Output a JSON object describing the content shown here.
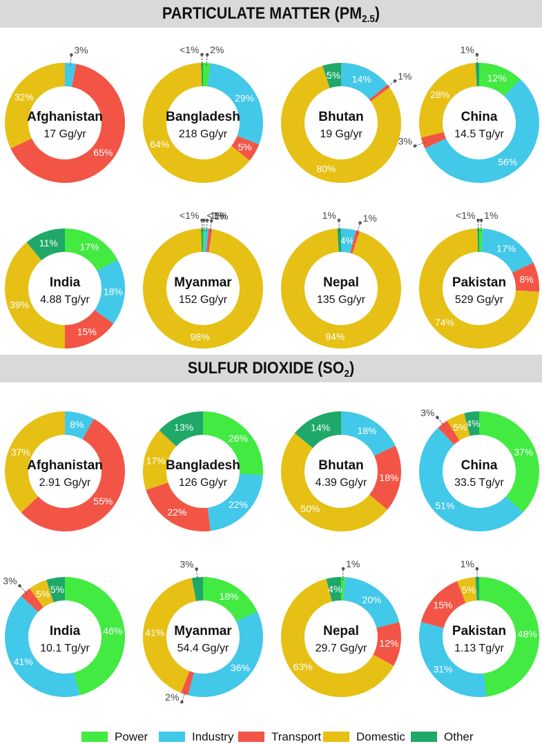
{
  "sections": [
    {
      "title_main": "PARTICULATE MATTER (PM",
      "title_sub": "2.5",
      "title_end": ")"
    },
    {
      "title_main": "SULFUR DIOXIDE (SO",
      "title_sub": "2",
      "title_end": ")"
    }
  ],
  "legend": [
    {
      "label": "Power",
      "color": "#42ea42"
    },
    {
      "label": "Industry",
      "color": "#42c8e8"
    },
    {
      "label": "Transport",
      "color": "#f25546"
    },
    {
      "label": "Domestic",
      "color": "#e6c014"
    },
    {
      "label": "Other",
      "color": "#1fa868"
    }
  ],
  "chart_data": [
    {
      "type": "pie",
      "section": "PARTICULATE MATTER (PM2.5)",
      "country": "Afghanistan",
      "total": "17 Gg/yr",
      "categories": [
        "Power",
        "Industry",
        "Transport",
        "Domestic",
        "Other"
      ],
      "values": [
        0,
        3,
        65,
        32,
        0
      ],
      "labels": [
        "",
        "3%",
        "65%",
        "32%",
        ""
      ]
    },
    {
      "type": "pie",
      "section": "PARTICULATE MATTER (PM2.5)",
      "country": "Bangladesh",
      "total": "218 Gg/yr",
      "categories": [
        "Power",
        "Industry",
        "Transport",
        "Domestic",
        "Other"
      ],
      "values": [
        2,
        29,
        5,
        64,
        0.5
      ],
      "labels": [
        "2%",
        "29%",
        "5%",
        "64%",
        "<1%"
      ]
    },
    {
      "type": "pie",
      "section": "PARTICULATE MATTER (PM2.5)",
      "country": "Bhutan",
      "total": "19 Gg/yr",
      "categories": [
        "Power",
        "Industry",
        "Transport",
        "Domestic",
        "Other"
      ],
      "values": [
        0,
        14,
        1,
        80,
        5
      ],
      "labels": [
        "",
        "14%",
        "1%",
        "80%",
        "5%"
      ]
    },
    {
      "type": "pie",
      "section": "PARTICULATE MATTER (PM2.5)",
      "country": "China",
      "total": "14.5 Tg/yr",
      "categories": [
        "Power",
        "Industry",
        "Transport",
        "Domestic",
        "Other"
      ],
      "values": [
        12,
        56,
        3,
        28,
        1
      ],
      "labels": [
        "12%",
        "56%",
        "3%",
        "28%",
        "1%"
      ]
    },
    {
      "type": "pie",
      "section": "PARTICULATE MATTER (PM2.5)",
      "country": "India",
      "total": "4.88 Tg/yr",
      "categories": [
        "Power",
        "Industry",
        "Transport",
        "Domestic",
        "Other"
      ],
      "values": [
        17,
        18,
        15,
        39,
        11
      ],
      "labels": [
        "17%",
        "18%",
        "15%",
        "39%",
        "11%"
      ]
    },
    {
      "type": "pie",
      "section": "PARTICULATE MATTER (PM2.5)",
      "country": "Myanmar",
      "total": "152 Gg/yr",
      "categories": [
        "Power",
        "Industry",
        "Transport",
        "Domestic",
        "Other"
      ],
      "values": [
        0.5,
        1,
        1,
        98,
        0.5
      ],
      "labels": [
        "<1%",
        "1%",
        "1%",
        "98%",
        "<1%"
      ]
    },
    {
      "type": "pie",
      "section": "PARTICULATE MATTER (PM2.5)",
      "country": "Nepal",
      "total": "135 Gg/yr",
      "categories": [
        "Power",
        "Industry",
        "Transport",
        "Domestic",
        "Other"
      ],
      "values": [
        0,
        4,
        1,
        94,
        1
      ],
      "labels": [
        "",
        "4%",
        "1%",
        "94%",
        "1%"
      ]
    },
    {
      "type": "pie",
      "section": "PARTICULATE MATTER (PM2.5)",
      "country": "Pakistan",
      "total": "529 Gg/yr",
      "categories": [
        "Power",
        "Industry",
        "Transport",
        "Domestic",
        "Other"
      ],
      "values": [
        1,
        17,
        8,
        74,
        0.5
      ],
      "labels": [
        "1%",
        "17%",
        "8%",
        "74%",
        "<1%"
      ]
    },
    {
      "type": "pie",
      "section": "SULFUR DIOXIDE (SO2)",
      "country": "Afghanistan",
      "total": "2.91 Gg/yr",
      "categories": [
        "Power",
        "Industry",
        "Transport",
        "Domestic",
        "Other"
      ],
      "values": [
        0,
        8,
        55,
        37,
        0
      ],
      "labels": [
        "",
        "8%",
        "55%",
        "37%",
        ""
      ]
    },
    {
      "type": "pie",
      "section": "SULFUR DIOXIDE (SO2)",
      "country": "Bangladesh",
      "total": "126 Gg/yr",
      "categories": [
        "Power",
        "Industry",
        "Transport",
        "Domestic",
        "Other"
      ],
      "values": [
        26,
        22,
        22,
        17,
        13
      ],
      "labels": [
        "26%",
        "22%",
        "22%",
        "17%",
        "13%"
      ]
    },
    {
      "type": "pie",
      "section": "SULFUR DIOXIDE (SO2)",
      "country": "Bhutan",
      "total": "4.39 Gg/yr",
      "categories": [
        "Power",
        "Industry",
        "Transport",
        "Domestic",
        "Other"
      ],
      "values": [
        0,
        18,
        18,
        50,
        14
      ],
      "labels": [
        "",
        "18%",
        "18%",
        "50%",
        "14%"
      ]
    },
    {
      "type": "pie",
      "section": "SULFUR DIOXIDE (SO2)",
      "country": "China",
      "total": "33.5 Tg/yr",
      "categories": [
        "Power",
        "Industry",
        "Transport",
        "Domestic",
        "Other"
      ],
      "values": [
        37,
        51,
        3,
        5,
        4
      ],
      "labels": [
        "37%",
        "51%",
        "3%",
        "5%",
        "4%"
      ]
    },
    {
      "type": "pie",
      "section": "SULFUR DIOXIDE (SO2)",
      "country": "India",
      "total": "10.1 Tg/yr",
      "categories": [
        "Power",
        "Industry",
        "Transport",
        "Domestic",
        "Other"
      ],
      "values": [
        46,
        41,
        3,
        5,
        5
      ],
      "labels": [
        "46%",
        "41%",
        "3%",
        "5%",
        "5%"
      ]
    },
    {
      "type": "pie",
      "section": "SULFUR DIOXIDE (SO2)",
      "country": "Myanmar",
      "total": "54.4 Gg/yr",
      "categories": [
        "Power",
        "Industry",
        "Transport",
        "Domestic",
        "Other"
      ],
      "values": [
        18,
        36,
        2,
        41,
        3
      ],
      "labels": [
        "18%",
        "36%",
        "2%",
        "41%",
        "3%"
      ]
    },
    {
      "type": "pie",
      "section": "SULFUR DIOXIDE (SO2)",
      "country": "Nepal",
      "total": "29.7 Gg/yr",
      "categories": [
        "Power",
        "Industry",
        "Transport",
        "Domestic",
        "Other"
      ],
      "values": [
        1,
        20,
        12,
        63,
        4
      ],
      "labels": [
        "1%",
        "20%",
        "12%",
        "63%",
        "4%"
      ]
    },
    {
      "type": "pie",
      "section": "SULFUR DIOXIDE (SO2)",
      "country": "Pakistan",
      "total": "1.13 Tg/yr",
      "categories": [
        "Power",
        "Industry",
        "Transport",
        "Domestic",
        "Other"
      ],
      "values": [
        48,
        31,
        15,
        5,
        1
      ],
      "labels": [
        "48%",
        "31%",
        "15%",
        "5%",
        "1%"
      ]
    }
  ]
}
